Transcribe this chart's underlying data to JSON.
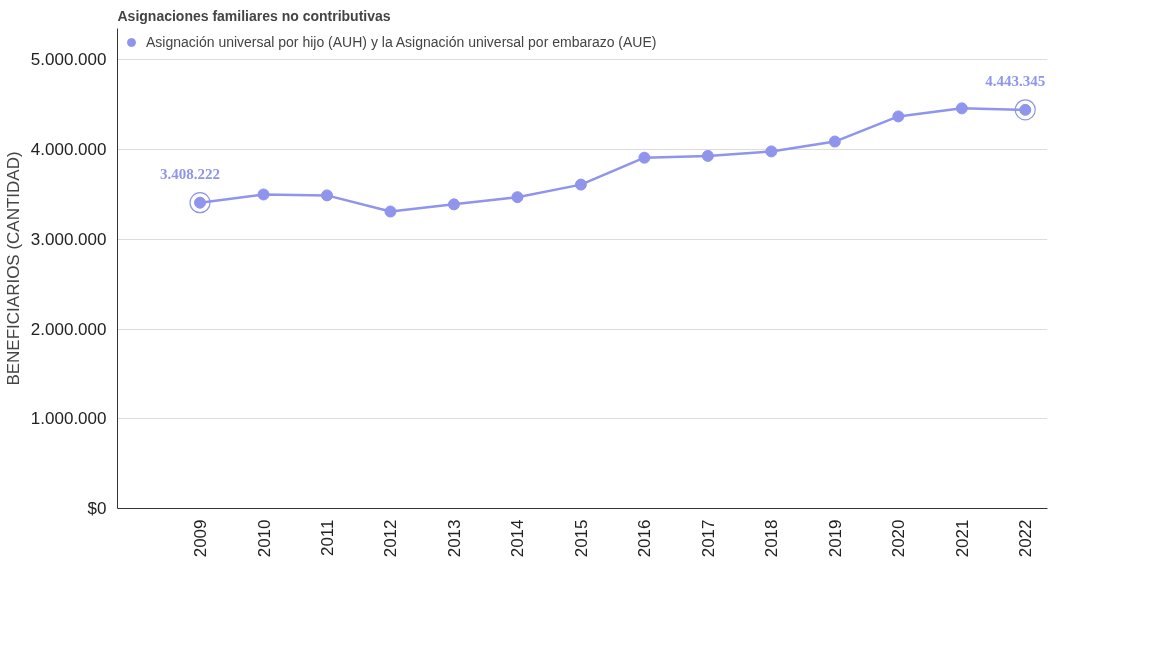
{
  "chart_data": {
    "type": "line",
    "title": "Asignaciones familiares no contributivas",
    "ylabel": "BENEFICIARIOS (CANTIDAD)",
    "categories": [
      "2009",
      "2010",
      "2011",
      "2012",
      "2013",
      "2014",
      "2015",
      "2016",
      "2017",
      "2018",
      "2019",
      "2020",
      "2021",
      "2022"
    ],
    "series": [
      {
        "name": "Asignación universal por hijo (AUH) y la Asignación universal por embarazo (AUE)",
        "color": "#8f94ec",
        "values": [
          3408222,
          3500000,
          3490000,
          3310000,
          3390000,
          3470000,
          3610000,
          3910000,
          3930000,
          3980000,
          4090000,
          4370000,
          4460000,
          4443345
        ],
        "value_labels": [
          "3.408.222",
          null,
          null,
          null,
          null,
          null,
          null,
          null,
          null,
          null,
          null,
          null,
          null,
          "4.443.345"
        ]
      }
    ],
    "ylim": [
      0,
      5350000
    ],
    "yticks": [
      {
        "value": 0,
        "label": "$0"
      },
      {
        "value": 1000000,
        "label": "1.000.000"
      },
      {
        "value": 2000000,
        "label": "2.000.000"
      },
      {
        "value": 3000000,
        "label": "3.000.000"
      },
      {
        "value": 4000000,
        "label": "4.000.000"
      },
      {
        "value": 5000000,
        "label": "5.000.000"
      }
    ],
    "grid": "y",
    "legend": "top left",
    "marker": "circle",
    "line_style": "solid"
  }
}
